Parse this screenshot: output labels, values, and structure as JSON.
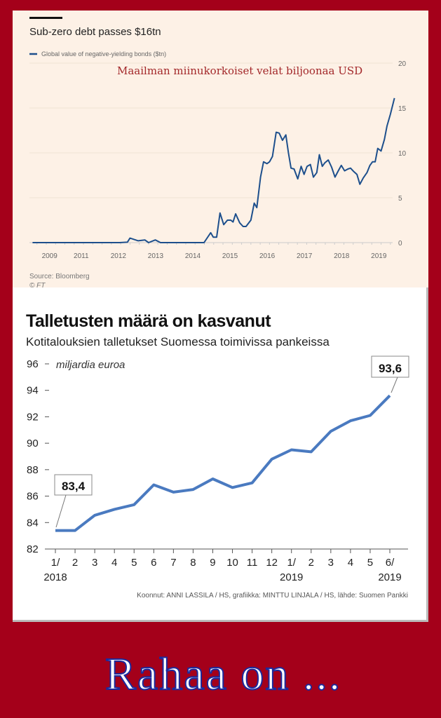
{
  "chart_data": [
    {
      "type": "line",
      "title": "Sub-zero debt passes $16tn",
      "legend": [
        "Global value of negative-yielding bonds ($tn)"
      ],
      "annotation": "Maailman miinukorkoiset velat biljoonaa  USD",
      "xlabel": "",
      "ylabel": "",
      "ylim": [
        0,
        20
      ],
      "yticks": [
        "0",
        "5",
        "10",
        "15",
        "20"
      ],
      "xtick_values": [
        2010.15,
        2011,
        2012,
        2013,
        2014,
        2015,
        2016,
        2017,
        2018,
        2019
      ],
      "xtick_labels": [
        "2009",
        "2011",
        "2012",
        "2013",
        "2014",
        "2015",
        "2016",
        "2017",
        "2018",
        "2019"
      ],
      "source": "Source: Bloomberg",
      "copyright": "© FT",
      "color": "#1d4f8c",
      "x": [
        2009.88,
        2012.22,
        2012.43,
        2012.5,
        2012.72,
        2012.9,
        2013.0,
        2013.18,
        2013.32,
        2014.49,
        2014.67,
        2014.74,
        2014.83,
        2014.92,
        2015.02,
        2015.12,
        2015.21,
        2015.27,
        2015.34,
        2015.45,
        2015.54,
        2015.62,
        2015.75,
        2015.84,
        2015.91,
        2016.01,
        2016.09,
        2016.18,
        2016.25,
        2016.33,
        2016.43,
        2016.51,
        2016.6,
        2016.69,
        2016.76,
        2016.83,
        2016.91,
        2017.01,
        2017.1,
        2017.18,
        2017.26,
        2017.35,
        2017.43,
        2017.52,
        2017.59,
        2017.67,
        2017.74,
        2017.83,
        2017.92,
        2018.01,
        2018.1,
        2018.18,
        2018.27,
        2018.36,
        2018.43,
        2018.52,
        2018.6,
        2018.68,
        2018.77,
        2018.87,
        2018.95,
        2019.02,
        2019.09,
        2019.16,
        2019.25,
        2019.34,
        2019.41,
        2019.5,
        2019.61
      ],
      "values": [
        0,
        0,
        0.05,
        0.5,
        0.2,
        0.3,
        0,
        0.3,
        0,
        0,
        1.1,
        0.6,
        0.6,
        3.3,
        2.0,
        2.5,
        2.5,
        2.3,
        3.2,
        2.2,
        1.8,
        1.8,
        2.5,
        4.4,
        3.9,
        7.3,
        9.0,
        8.8,
        9.0,
        9.6,
        12.3,
        12.2,
        11.4,
        12.0,
        10.0,
        8.3,
        8.2,
        7.1,
        8.5,
        7.6,
        8.5,
        8.7,
        7.3,
        7.8,
        9.8,
        8.5,
        8.9,
        9.2,
        8.4,
        7.3,
        8.0,
        8.6,
        8.0,
        8.2,
        8.3,
        7.9,
        7.6,
        6.5,
        7.2,
        7.8,
        8.6,
        9.0,
        9.0,
        10.5,
        10.2,
        11.5,
        13.0,
        14.3,
        16.1
      ]
    },
    {
      "type": "line",
      "title": "Talletusten määrä on kasvanut",
      "subtitle": "Kotitalouksien talletukset Suomessa toimivissa pankeissa",
      "ylabel": "miljardia euroa",
      "ylim": [
        82,
        96
      ],
      "yticks": [
        "82",
        "84",
        "86",
        "88",
        "90",
        "92",
        "94",
        "96"
      ],
      "categories": [
        "1/",
        "2",
        "3",
        "4",
        "5",
        "6",
        "7",
        "8",
        "9",
        "10",
        "11",
        "12",
        "1/",
        "2",
        "3",
        "4",
        "5",
        "6/"
      ],
      "year_labels": {
        "0": "2018",
        "12": "2019",
        "17": "2019"
      },
      "values": [
        83.4,
        83.4,
        84.55,
        85.0,
        85.35,
        86.85,
        86.3,
        86.5,
        87.3,
        86.65,
        87.0,
        88.8,
        89.5,
        89.35,
        90.9,
        91.7,
        92.1,
        93.6
      ],
      "callouts": [
        "83,4",
        "93,6"
      ],
      "credit": "Koonnut: ANNI LASSILA / HS, grafiikka: MINTTU LINJALA / HS, lähde: Suomen Pankki",
      "color": "#4a7ac0"
    }
  ],
  "footer_text": "Rahaa on ..."
}
